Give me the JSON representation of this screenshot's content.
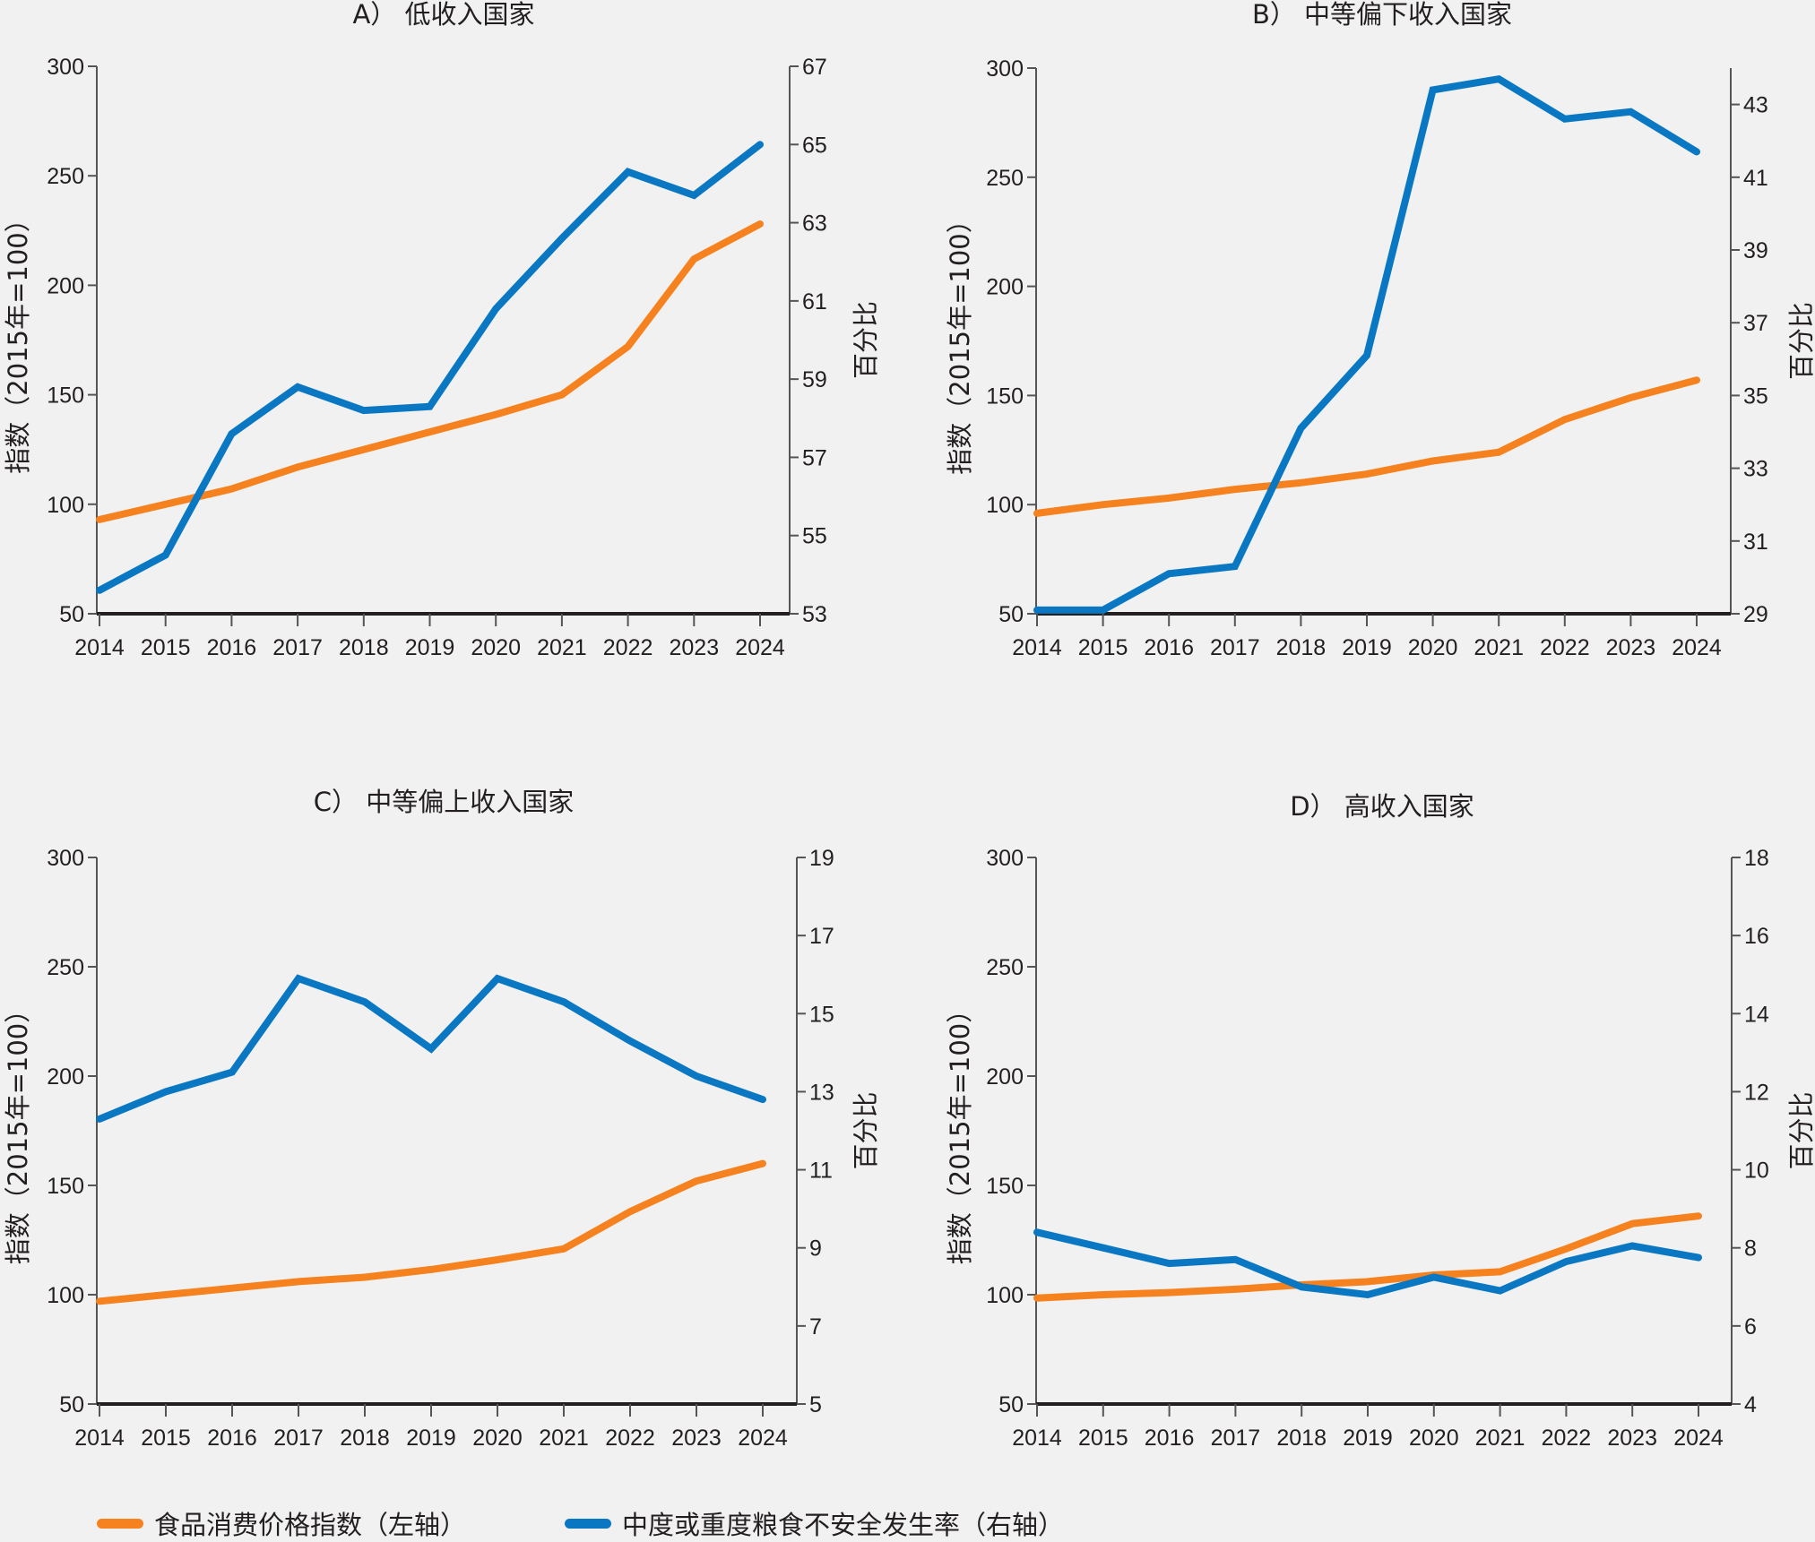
{
  "colors": {
    "food_cpi": "#f5821f",
    "food_insecurity": "#0a77c2",
    "axis": "#231f20",
    "background": "#f1f1f1"
  },
  "legend": {
    "items": [
      {
        "key": "food_cpi",
        "label": "食品消费价格指数（左轴）"
      },
      {
        "key": "food_insecurity",
        "label": "中度或重度粮食不安全发生率（右轴）"
      }
    ]
  },
  "chart_data": [
    {
      "type": "line",
      "title": "A） 低收入国家",
      "ylabel": "指数（2015年=100）",
      "y2label": "百分比",
      "x": [
        2014,
        2015,
        2016,
        2017,
        2018,
        2019,
        2020,
        2021,
        2022,
        2023,
        2024
      ],
      "ylim": [
        50,
        300
      ],
      "yticks": [
        50,
        100,
        150,
        200,
        250,
        300
      ],
      "y2lim": [
        53,
        67
      ],
      "y2ticks": [
        53,
        55,
        57,
        59,
        61,
        63,
        65,
        67
      ],
      "grid": false,
      "series": [
        {
          "name": "食品消费价格指数（左轴）",
          "axis": "left",
          "key": "food_cpi",
          "values": [
            93,
            100,
            107,
            117,
            125,
            133,
            141,
            150,
            172,
            212,
            228
          ]
        },
        {
          "name": "中度或重度粮食不安全发生率（右轴）",
          "axis": "right",
          "key": "food_insecurity",
          "values": [
            53.6,
            54.5,
            57.6,
            58.8,
            58.2,
            58.3,
            60.8,
            62.6,
            64.3,
            63.7,
            65.0
          ]
        }
      ]
    },
    {
      "type": "line",
      "title": "B） 中等偏下收入国家",
      "ylabel": "指数（2015年=100）",
      "y2label": "百分比",
      "x": [
        2014,
        2015,
        2016,
        2017,
        2018,
        2019,
        2020,
        2021,
        2022,
        2023,
        2024
      ],
      "ylim": [
        50,
        300
      ],
      "yticks": [
        50,
        100,
        150,
        200,
        250,
        300
      ],
      "y2lim": [
        29,
        44
      ],
      "y2ticks": [
        29,
        31,
        33,
        35,
        37,
        39,
        41,
        43
      ],
      "grid": false,
      "series": [
        {
          "name": "食品消费价格指数（左轴）",
          "axis": "left",
          "key": "food_cpi",
          "values": [
            96,
            100,
            103,
            107,
            110,
            114,
            120,
            124,
            139,
            149,
            157
          ]
        },
        {
          "name": "中度或重度粮食不安全发生率（右轴）",
          "axis": "right",
          "key": "food_insecurity",
          "values": [
            29.1,
            29.1,
            30.1,
            30.3,
            34.1,
            36.1,
            43.4,
            43.7,
            42.6,
            42.8,
            41.7
          ]
        }
      ]
    },
    {
      "type": "line",
      "title": "C） 中等偏上收入国家",
      "ylabel": "指数（2015年=100）",
      "y2label": "百分比",
      "x": [
        2014,
        2015,
        2016,
        2017,
        2018,
        2019,
        2020,
        2021,
        2022,
        2023,
        2024
      ],
      "ylim": [
        50,
        300
      ],
      "yticks": [
        50,
        100,
        150,
        200,
        250,
        300
      ],
      "y2lim": [
        5,
        19
      ],
      "y2ticks": [
        5,
        7,
        9,
        11,
        13,
        15,
        17,
        19
      ],
      "grid": false,
      "series": [
        {
          "name": "食品消费价格指数（左轴）",
          "axis": "left",
          "key": "food_cpi",
          "values": [
            97,
            100,
            103,
            106,
            108,
            111.5,
            116,
            121,
            138,
            152,
            160
          ]
        },
        {
          "name": "中度或重度粮食不安全发生率（右轴）",
          "axis": "right",
          "key": "food_insecurity",
          "values": [
            12.3,
            13.0,
            13.5,
            15.9,
            15.3,
            14.1,
            15.9,
            15.3,
            14.3,
            13.4,
            12.8
          ]
        }
      ]
    },
    {
      "type": "line",
      "title": "D） 高收入国家",
      "ylabel": "指数（2015年=100）",
      "y2label": "百分比",
      "x": [
        2014,
        2015,
        2016,
        2017,
        2018,
        2019,
        2020,
        2021,
        2022,
        2023,
        2024
      ],
      "ylim": [
        50,
        300
      ],
      "yticks": [
        50,
        100,
        150,
        200,
        250,
        300
      ],
      "y2lim": [
        4,
        18
      ],
      "y2ticks": [
        4,
        6,
        8,
        10,
        12,
        14,
        16,
        18
      ],
      "grid": false,
      "series": [
        {
          "name": "食品消费价格指数（左轴）",
          "axis": "left",
          "key": "food_cpi",
          "values": [
            98.5,
            100,
            101,
            102.5,
            104.5,
            106,
            109,
            110.5,
            121,
            132.5,
            136
          ]
        },
        {
          "name": "中度或重度粮食不安全发生率（右轴）",
          "axis": "right",
          "key": "food_insecurity",
          "values": [
            8.4,
            8.0,
            7.6,
            7.7,
            7.0,
            6.8,
            7.25,
            6.9,
            7.65,
            8.05,
            7.75
          ]
        }
      ]
    }
  ]
}
